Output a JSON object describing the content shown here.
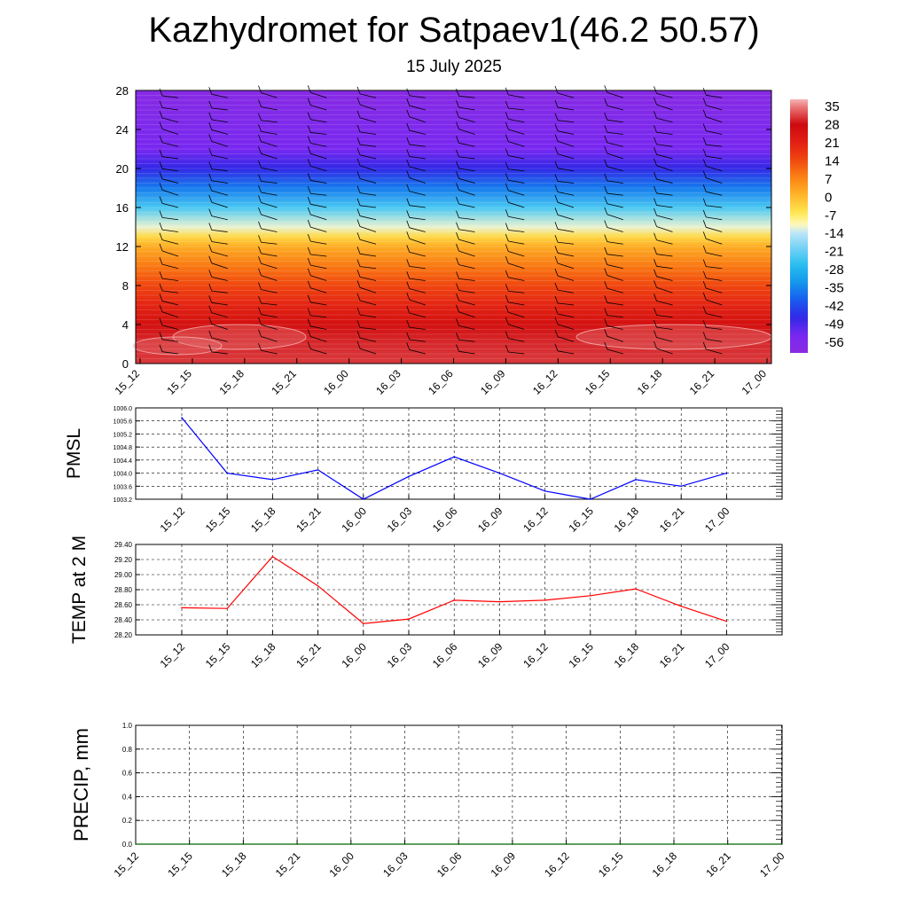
{
  "title": "Kazhydromet for Satpaev1(46.2 50.57)",
  "subtitle": "15 July 2025",
  "chart_data": [
    {
      "type": "heatmap",
      "description_source": "vertical temperature cross-section with wind barbs",
      "x_ticks": [
        "15_12",
        "15_15",
        "15_18",
        "15_21",
        "16_00",
        "16_03",
        "16_06",
        "16_09",
        "16_12",
        "16_15",
        "16_18",
        "16_21",
        "17_00"
      ],
      "y_ticks": [
        0,
        4,
        8,
        12,
        16,
        20,
        24,
        28
      ],
      "ylim": [
        0,
        28
      ],
      "colorbar": {
        "labels": [
          "35",
          "28",
          "21",
          "14",
          "7",
          "0",
          "-7",
          "-14",
          "-21",
          "-28",
          "-35",
          "-42",
          "-49",
          "-56"
        ],
        "range": [
          -63,
          38
        ]
      },
      "temperature_profile": {
        "heights": [
          0,
          2,
          4,
          6,
          8,
          10,
          12,
          13,
          14,
          16,
          18,
          20,
          22,
          24,
          26,
          28
        ],
        "values": [
          31,
          30,
          26,
          20,
          14,
          8,
          1,
          -5,
          -13,
          -25,
          -38,
          -49,
          -56,
          -58,
          -60,
          -62
        ]
      }
    },
    {
      "type": "line",
      "ylabel": "PMSL",
      "x_ticks": [
        "15_12",
        "15_15",
        "15_18",
        "15_21",
        "16_00",
        "16_03",
        "16_06",
        "16_09",
        "16_12",
        "16_15",
        "16_18",
        "16_21",
        "17_00"
      ],
      "y_ticks": [
        "1003.2",
        "1003.6",
        "1004.0",
        "1004.4",
        "1004.8",
        "1005.2",
        "1005.6",
        "1006.0"
      ],
      "ylim": [
        1003.2,
        1006.0
      ],
      "color": "#0000ff",
      "values": [
        1005.7,
        1004.0,
        1003.8,
        1004.1,
        1003.2,
        1003.9,
        1004.5,
        1004.0,
        1003.45,
        1003.2,
        1003.8,
        1003.6,
        1004.0
      ]
    },
    {
      "type": "line",
      "ylabel": "TEMP at 2 M",
      "x_ticks": [
        "15_12",
        "15_15",
        "15_18",
        "15_21",
        "16_00",
        "16_03",
        "16_06",
        "16_09",
        "16_12",
        "16_15",
        "16_18",
        "16_21",
        "17_00"
      ],
      "y_ticks": [
        "28.20",
        "28.40",
        "28.60",
        "28.80",
        "29.00",
        "29.20",
        "29.40"
      ],
      "ylim": [
        28.2,
        29.4
      ],
      "color": "#ff0000",
      "values": [
        28.56,
        28.55,
        29.24,
        28.85,
        28.35,
        28.41,
        28.66,
        28.64,
        28.66,
        28.72,
        28.81,
        28.58,
        28.38
      ]
    },
    {
      "type": "line",
      "ylabel": "PRECIP, mm",
      "x_ticks": [
        "15_12",
        "15_15",
        "15_18",
        "15_21",
        "16_00",
        "16_03",
        "16_06",
        "16_09",
        "16_12",
        "16_15",
        "16_18",
        "16_21",
        "17_00"
      ],
      "y_ticks": [
        "0.0",
        "0.2",
        "0.4",
        "0.6",
        "0.8",
        "1.0"
      ],
      "ylim": [
        0,
        1
      ],
      "color": "#006400",
      "values": [
        0,
        0,
        0,
        0,
        0,
        0,
        0,
        0,
        0,
        0,
        0,
        0,
        0
      ]
    }
  ]
}
